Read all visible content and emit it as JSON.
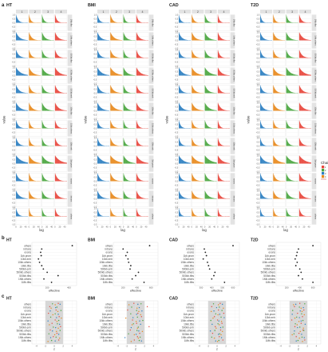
{
  "figure": {
    "panel_labels": [
      "a",
      "b",
      "c"
    ],
    "traits": [
      "HT",
      "BMI",
      "CAD",
      "T2D"
    ],
    "colors": {
      "strip": "#e3e3e3",
      "panel_bg": "#ffffff",
      "grid": "#e9e9e9",
      "shade": "#d7d7d7",
      "point": "#222222",
      "legend_sep": "#c83a3a"
    }
  },
  "chart_data": [
    {
      "panel": "a",
      "type": "bar",
      "facet_columns": [
        "1",
        "2",
        "3",
        "4"
      ],
      "facet_rows": [
        "1Mb.tfbs",
        "1Mb.others",
        "500kb.tfbs",
        "500kb.others",
        "500kb.enh",
        "10kb.tfbs",
        "10kb.others",
        "10kb.enh",
        "1kb.prom",
        "exons",
        "introns",
        "others"
      ],
      "xlabel": "lag",
      "ylabel": "value",
      "x_ticks": [
        "0",
        "20",
        "40"
      ],
      "xlim": [
        0,
        50
      ],
      "y_ticks": [
        "1.0",
        "0.5",
        "0.0",
        "-0.5",
        "-1.0"
      ],
      "ylim": [
        -1.0,
        1.0
      ],
      "legend": {
        "title": "Chain",
        "items": [
          {
            "name": "1",
            "color": "#e8473c"
          },
          {
            "name": "2",
            "color": "#4aa63f"
          },
          {
            "name": "3",
            "color": "#2c7fc1"
          },
          {
            "name": "4",
            "color": "#e8891c"
          }
        ]
      },
      "series_colors_by_column": [
        "#2c7fc1",
        "#e8891c",
        "#4aa63f",
        "#e8473c"
      ],
      "decay_rates_by_row": [
        0.13,
        0.08,
        0.1,
        0.06,
        0.09,
        0.07,
        0.12,
        0.11,
        0.05,
        0.1,
        0.08,
        0.14
      ]
    },
    {
      "panel": "b",
      "type": "scatter",
      "categories": [
        "others",
        "introns",
        "exons",
        "1kb.prom",
        "10kb.enh",
        "10kb.others",
        "10kb.tfbs",
        "500kb.enh",
        "500kb.others",
        "500kb.tfbs",
        "1Mb.others",
        "1Mb.tfbs"
      ],
      "xlabel": "effective",
      "x_ticks_by_trait": [
        [
          {
            "v": 200,
            "t": "200"
          },
          {
            "v": 400,
            "t": "400"
          }
        ],
        [
          {
            "v": 200,
            "t": "200"
          },
          {
            "v": 400,
            "t": "400"
          },
          {
            "v": 600,
            "t": "600"
          }
        ],
        [
          {
            "v": 300,
            "t": "300"
          },
          {
            "v": 400,
            "t": "400"
          },
          {
            "v": 500,
            "t": "500"
          },
          {
            "v": 600,
            "t": "600"
          }
        ],
        [
          {
            "v": 200,
            "t": "200"
          },
          {
            "v": 400,
            "t": "400"
          },
          {
            "v": 600,
            "t": "600"
          }
        ]
      ],
      "xlim_by_trait": [
        [
          60,
          470
        ],
        [
          60,
          700
        ],
        [
          240,
          660
        ],
        [
          40,
          720
        ]
      ],
      "values_by_trait": [
        [
          430,
          150,
          140,
          145,
          120,
          130,
          150,
          165,
          200,
          300,
          170,
          240
        ],
        [
          580,
          200,
          260,
          240,
          270,
          280,
          310,
          300,
          420,
          380,
          330,
          500
        ],
        [
          600,
          330,
          340,
          350,
          320,
          360,
          370,
          380,
          430,
          420,
          400,
          520
        ],
        [
          600,
          380,
          360,
          350,
          330,
          360,
          340,
          400,
          420,
          380,
          440,
          600
        ]
      ]
    },
    {
      "panel": "c",
      "type": "scatter",
      "categories": [
        "others",
        "introns",
        "exons",
        "1kb.prom",
        "10kb.enh",
        "10kb.others",
        "10kb.tfbs",
        "500kb.enh",
        "500kb.others",
        "500kb.tfbs",
        "1Mb.others",
        "1Mb.tfbs"
      ],
      "xlabel": "z",
      "x_ticks": [
        "-4",
        "-2",
        "0",
        "2",
        "4"
      ],
      "xlim": [
        -5,
        5
      ],
      "shaded_interval": [
        -2,
        2
      ],
      "chain_colors": [
        "#e8473c",
        "#4aa63f",
        "#2c7fc1",
        "#e8891c"
      ],
      "values_by_trait": [
        [
          [
            0.9,
            -0.4,
            1.3,
            0.2
          ],
          [
            -1.0,
            0.6,
            0.3,
            -0.7
          ],
          [
            0.4,
            1.5,
            -0.9,
            0.8
          ],
          [
            -1.3,
            0.2,
            0.9,
            -0.3
          ],
          [
            1.1,
            -0.8,
            0.5,
            1.6
          ],
          [
            0.2,
            1.0,
            -1.4,
            0.6
          ],
          [
            -0.5,
            0.7,
            1.2,
            -1.1
          ],
          [
            1.4,
            -0.2,
            0.3,
            0.9
          ],
          [
            -0.9,
            1.3,
            -0.4,
            0.5
          ],
          [
            0.6,
            -1.2,
            1.0,
            0.1
          ],
          [
            -0.2,
            0.4,
            -0.8,
            1.2
          ],
          [
            1.0,
            -0.6,
            0.2,
            -1.4
          ]
        ],
        [
          [
            -0.4,
            1.2,
            0.5,
            -1.5
          ],
          [
            2.6,
            -0.9,
            0.8,
            0.3
          ],
          [
            -1.8,
            0.2,
            1.4,
            0.7
          ],
          [
            0.5,
            -1.1,
            0.2,
            1.1
          ],
          [
            1.3,
            0.4,
            -0.6,
            -2.2
          ],
          [
            -0.7,
            1.6,
            0.9,
            0.1
          ],
          [
            0.2,
            -0.5,
            1.1,
            -0.8
          ],
          [
            3.0,
            0.6,
            -1.0,
            0.4
          ],
          [
            -1.2,
            0.3,
            0.7,
            1.5
          ],
          [
            0.9,
            -1.6,
            0.1,
            -0.3
          ],
          [
            0.4,
            1.0,
            -2.4,
            0.6
          ],
          [
            -0.3,
            0.8,
            1.3,
            -1.0
          ]
        ],
        [
          [
            0.7,
            -0.8,
            1.2,
            0.3
          ],
          [
            -1.2,
            0.5,
            -0.1,
            1.4
          ],
          [
            0.3,
            1.1,
            -0.7,
            -1.3
          ],
          [
            1.5,
            -0.3,
            0.6,
            0.2
          ],
          [
            -0.6,
            0.9,
            1.6,
            -0.9
          ],
          [
            0.1,
            -1.4,
            0.4,
            1.0
          ],
          [
            1.1,
            0.2,
            -1.1,
            0.5
          ],
          [
            -0.4,
            1.3,
            0.8,
            -0.2
          ],
          [
            0.8,
            -0.5,
            -1.5,
            1.2
          ],
          [
            -1.0,
            0.6,
            0.3,
            0.9
          ],
          [
            0.5,
            -1.2,
            1.0,
            -0.6
          ],
          [
            1.3,
            0.4,
            -0.3,
            0.1
          ]
        ],
        [
          [
            0.3,
            1.4,
            -0.6,
            -1.1
          ],
          [
            -0.9,
            0.2,
            1.1,
            0.6
          ],
          [
            1.2,
            -1.3,
            0.4,
            0.8
          ],
          [
            -0.2,
            0.7,
            -1.4,
            1.3
          ],
          [
            0.9,
            -0.4,
            0.2,
            -0.8
          ],
          [
            -1.5,
            1.0,
            0.6,
            0.1
          ],
          [
            0.6,
            -0.7,
            1.5,
            -0.3
          ],
          [
            -0.8,
            0.3,
            -0.2,
            1.1
          ],
          [
            1.0,
            1.2,
            -0.9,
            0.4
          ],
          [
            0.1,
            -1.0,
            0.7,
            -1.4
          ],
          [
            -0.5,
            0.8,
            1.3,
            0.2
          ],
          [
            1.4,
            -0.1,
            -0.5,
            0.9
          ]
        ]
      ]
    }
  ]
}
